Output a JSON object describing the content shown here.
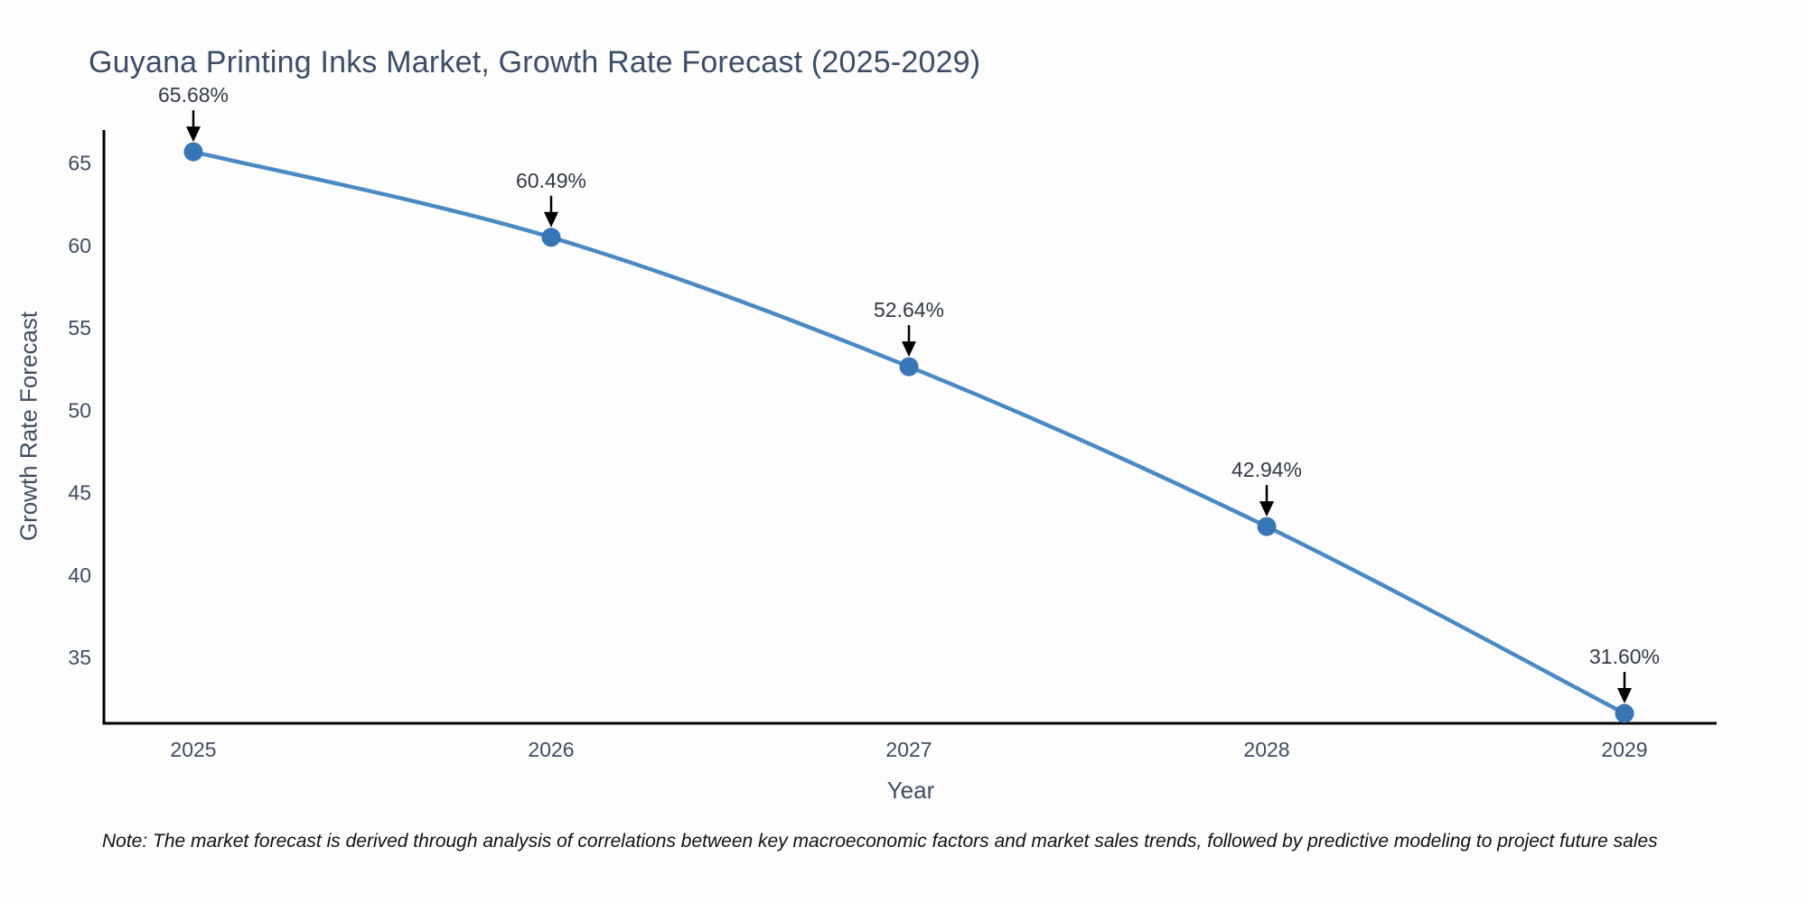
{
  "chart_data": {
    "type": "line",
    "title": "Guyana Printing Inks Market, Growth Rate Forecast (2025-2029)",
    "xlabel": "Year",
    "ylabel": "Growth Rate Forecast",
    "categories": [
      "2025",
      "2026",
      "2027",
      "2028",
      "2029"
    ],
    "values": [
      65.68,
      60.49,
      52.64,
      42.94,
      31.6
    ],
    "point_labels": [
      "65.68%",
      "60.49%",
      "52.64%",
      "42.94%",
      "31.60%"
    ],
    "y_ticks": [
      35,
      40,
      45,
      50,
      55,
      60,
      65
    ],
    "ylim": [
      31,
      67
    ],
    "grid": false,
    "legend": "none",
    "line_color": "#4a8ac4",
    "marker_color": "#3676b5",
    "axis_color": "#000000",
    "tick_label_color": "#3f4c61",
    "annotation_color": "#333a44",
    "annotation_arrow_color": "#000000",
    "background_color": "#fdfdfd"
  },
  "note": {
    "text": "Note: The market forecast is derived through analysis of correlations between key macroeconomic factors and market sales trends, followed by predictive modeling to project future sales"
  }
}
